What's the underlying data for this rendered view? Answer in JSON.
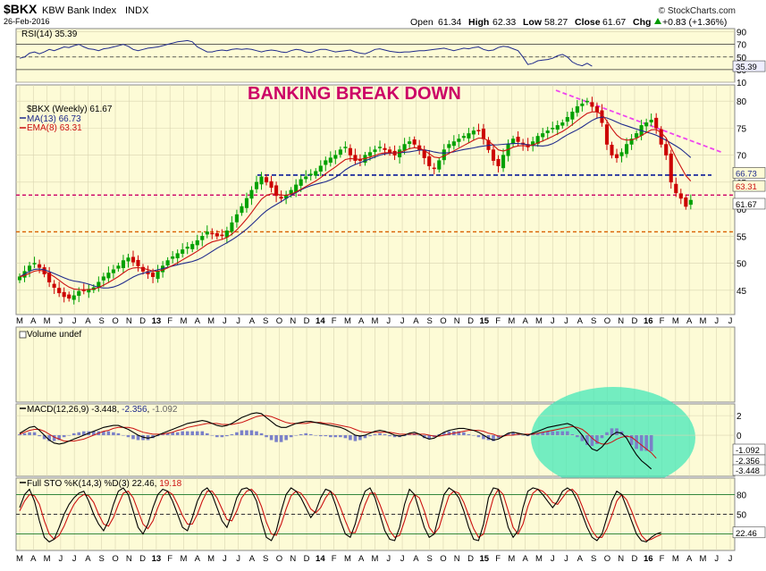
{
  "header": {
    "symbol": "$BKX",
    "name": "KBW Bank Index",
    "exchange": "INDX",
    "date": "26-Feb-2016",
    "ohlc": [
      {
        "label": "Open",
        "value": "61.34"
      },
      {
        "label": "High",
        "value": "62.33"
      },
      {
        "label": "Low",
        "value": "58.27"
      },
      {
        "label": "Close",
        "value": "61.67"
      },
      {
        "label": "Chg",
        "value": "+0.83 (+1.36%)"
      }
    ],
    "watermark": "© StockCharts.com",
    "arrow_color": "#009900"
  },
  "annotation": {
    "text": "BANKING BREAK DOWN",
    "color": "#cc0066"
  },
  "colors": {
    "panel_bg": "#fdfbd6",
    "grid": "#d9d4b0",
    "price_up": "#00a000",
    "price_down": "#cc0000",
    "ma13": "#1f2a8c",
    "ema8": "#cc1111",
    "support_blue": "#0a1a99",
    "level_pink": "#cc0066",
    "level_orange": "#d96000",
    "trend_magenta": "#ee44ee",
    "highlight": "#44e8b8",
    "macd_line": "#000000",
    "macd_signal": "#cc1111",
    "macd_hist": "#7a80c8",
    "sto_k": "#000000",
    "sto_d": "#cc1111",
    "rsi_line": "#1f2a8c"
  },
  "chart_data": [
    {
      "type": "line",
      "panel": "rsi",
      "title": "RSI(14) 35.39",
      "label": "RSI(14)",
      "value_text": "35.39",
      "y_ticks": [
        "10",
        "30",
        "50",
        "70",
        "90"
      ],
      "current_label": "35.39",
      "ylim": [
        10,
        95
      ],
      "guide_levels": [
        30,
        50,
        70
      ],
      "values": [
        48,
        50,
        56,
        58,
        55,
        58,
        62,
        60,
        63,
        66,
        65,
        68,
        70,
        66,
        63,
        62,
        60,
        63,
        64,
        66,
        68,
        70,
        67,
        62,
        60,
        62,
        64,
        65,
        66,
        68,
        70,
        72,
        74,
        75,
        76,
        74,
        66,
        62,
        58,
        58,
        60,
        61,
        60,
        62,
        63,
        62,
        63,
        62,
        60,
        58,
        60,
        61,
        60,
        58,
        57,
        60,
        62,
        61,
        58,
        57,
        60,
        62,
        62,
        60,
        58,
        59,
        60,
        61,
        58,
        56,
        55,
        58,
        62,
        63,
        61,
        59,
        58,
        57,
        58,
        58,
        59,
        60,
        60,
        61,
        62,
        63,
        64,
        62,
        60,
        62,
        64,
        63,
        65,
        66,
        62,
        60,
        61,
        65,
        67,
        66,
        63,
        60,
        50,
        38,
        40,
        44,
        45,
        46,
        48,
        52,
        54,
        50,
        42,
        38,
        36,
        40,
        35.39
      ]
    },
    {
      "type": "candlestick",
      "panel": "price",
      "title": "$BKX (Weekly) 61.67",
      "series_labels": [
        {
          "name": "$BKX (Weekly)",
          "value": "61.67"
        },
        {
          "name": "MA(13)",
          "value": "66.73"
        },
        {
          "name": "EMA(8)",
          "value": "63.31"
        }
      ],
      "y_ticks": [
        "45",
        "50",
        "55",
        "60",
        "65",
        "70",
        "75",
        "80"
      ],
      "price_tags": [
        "66.73",
        "63.31",
        "61.67"
      ],
      "ylim": [
        40.5,
        83
      ],
      "x_labels": [
        "M",
        "A",
        "M",
        "J",
        "J",
        "A",
        "S",
        "O",
        "N",
        "D",
        "13",
        "F",
        "M",
        "A",
        "M",
        "J",
        "J",
        "A",
        "S",
        "O",
        "N",
        "D",
        "14",
        "F",
        "M",
        "A",
        "M",
        "J",
        "J",
        "A",
        "S",
        "O",
        "N",
        "D",
        "15",
        "F",
        "M",
        "A",
        "M",
        "J",
        "J",
        "A",
        "S",
        "O",
        "N",
        "D",
        "16",
        "F",
        "M",
        "A",
        "M",
        "J",
        "J"
      ],
      "close": [
        47.5,
        48.5,
        49.5,
        50.0,
        49.2,
        48.0,
        46.5,
        45.5,
        44.5,
        43.8,
        43.5,
        44.0,
        44.8,
        45.0,
        45.2,
        45.5,
        46.5,
        47.5,
        48.2,
        48.8,
        49.5,
        50.5,
        51.0,
        50.2,
        49.5,
        48.5,
        48.0,
        47.5,
        48.5,
        49.5,
        50.5,
        51.2,
        51.8,
        52.5,
        53.0,
        53.5,
        54.2,
        55.0,
        55.8,
        55.5,
        55.0,
        55.2,
        56.0,
        57.5,
        59.0,
        60.5,
        62.0,
        63.5,
        65.0,
        66.0,
        65.0,
        64.0,
        62.5,
        62.0,
        62.5,
        63.5,
        64.5,
        65.5,
        66.0,
        66.5,
        67.0,
        68.0,
        69.0,
        69.5,
        70.0,
        71.0,
        71.5,
        70.0,
        69.0,
        69.0,
        70.0,
        70.5,
        71.0,
        71.5,
        71.0,
        70.5,
        70.0,
        71.0,
        72.0,
        72.5,
        72.0,
        71.0,
        69.5,
        68.0,
        67.5,
        69.0,
        71.0,
        72.0,
        72.5,
        73.0,
        73.5,
        74.0,
        74.5,
        74.5,
        73.0,
        71.0,
        69.0,
        68.0,
        70.0,
        72.0,
        73.0,
        72.5,
        72.0,
        71.5,
        72.5,
        73.5,
        74.0,
        74.5,
        75.0,
        75.5,
        76.0,
        77.0,
        78.0,
        79.0,
        79.5,
        80.0,
        79.0,
        78.0,
        76.0,
        72.0,
        70.0,
        69.5,
        70.5,
        72.0,
        73.0,
        74.0,
        75.5,
        76.0,
        76.5,
        75.0,
        72.0,
        70.0,
        65.0,
        63.0,
        62.0,
        60.5,
        61.67
      ]
    },
    {
      "type": "bar",
      "panel": "volume",
      "title": "Volume undef",
      "values": []
    },
    {
      "type": "line",
      "panel": "macd",
      "title": "MACD(12,26,9) -3.448, -2.356, -1.092",
      "label": "MACD(12,26,9)",
      "values_text": [
        "-3.448",
        "-2.356",
        "-1.092"
      ],
      "y_ticks": [
        "2",
        "0"
      ],
      "current_labels": [
        "-1.092",
        "-2.356",
        "-3.448"
      ],
      "ylim": [
        -4.2,
        3.2
      ],
      "series": [
        {
          "name": "MACD",
          "values": [
            0.2,
            0.5,
            0.8,
            0.9,
            0.5,
            0.0,
            -0.5,
            -0.8,
            -0.9,
            -0.8,
            -0.6,
            -0.4,
            -0.2,
            0.0,
            0.2,
            0.4,
            0.6,
            0.8,
            0.9,
            1.0,
            1.0,
            0.8,
            0.6,
            0.3,
            0.0,
            -0.2,
            -0.3,
            -0.2,
            0.0,
            0.2,
            0.4,
            0.6,
            0.8,
            1.0,
            1.2,
            1.3,
            1.4,
            1.5,
            1.4,
            1.2,
            1.0,
            0.9,
            1.0,
            1.2,
            1.5,
            1.8,
            2.0,
            2.2,
            2.3,
            2.2,
            1.8,
            1.4,
            1.0,
            0.8,
            0.8,
            1.0,
            1.2,
            1.3,
            1.4,
            1.4,
            1.3,
            1.2,
            1.1,
            1.0,
            0.9,
            0.8,
            0.6,
            0.3,
            0.0,
            -0.1,
            0.0,
            0.2,
            0.4,
            0.5,
            0.4,
            0.2,
            0.0,
            -0.1,
            0.0,
            0.2,
            0.3,
            0.1,
            -0.2,
            -0.4,
            -0.3,
            0.0,
            0.3,
            0.5,
            0.6,
            0.7,
            0.7,
            0.6,
            0.5,
            0.3,
            0.0,
            -0.3,
            -0.5,
            -0.4,
            -0.1,
            0.2,
            0.3,
            0.2,
            0.1,
            0.0,
            0.2,
            0.4,
            0.6,
            0.8,
            0.9,
            1.0,
            1.1,
            1.2,
            1.0,
            0.6,
            0.0,
            -0.8,
            -1.4,
            -1.6,
            -1.2,
            -0.6,
            0.0,
            0.3,
            0.2,
            -0.3,
            -1.2,
            -2.0,
            -2.6,
            -3.0,
            -3.448
          ]
        },
        {
          "name": "Signal",
          "values": [
            0.1,
            0.3,
            0.5,
            0.6,
            0.6,
            0.4,
            0.1,
            -0.2,
            -0.4,
            -0.6,
            -0.6,
            -0.6,
            -0.5,
            -0.4,
            -0.2,
            0.0,
            0.2,
            0.4,
            0.5,
            0.7,
            0.8,
            0.8,
            0.8,
            0.7,
            0.5,
            0.3,
            0.2,
            0.1,
            0.1,
            0.1,
            0.2,
            0.3,
            0.5,
            0.6,
            0.8,
            0.9,
            1.0,
            1.1,
            1.2,
            1.2,
            1.2,
            1.1,
            1.1,
            1.1,
            1.2,
            1.3,
            1.5,
            1.7,
            1.9,
            2.0,
            2.0,
            1.9,
            1.7,
            1.5,
            1.3,
            1.2,
            1.2,
            1.2,
            1.2,
            1.3,
            1.3,
            1.3,
            1.2,
            1.2,
            1.1,
            1.0,
            0.9,
            0.8,
            0.6,
            0.4,
            0.3,
            0.3,
            0.3,
            0.3,
            0.3,
            0.3,
            0.2,
            0.1,
            0.1,
            0.1,
            0.1,
            0.1,
            0.1,
            0.0,
            -0.1,
            -0.1,
            0.0,
            0.1,
            0.2,
            0.3,
            0.4,
            0.5,
            0.5,
            0.5,
            0.4,
            0.2,
            0.1,
            -0.1,
            -0.1,
            0.0,
            0.0,
            0.1,
            0.1,
            0.1,
            0.1,
            0.2,
            0.3,
            0.4,
            0.5,
            0.6,
            0.7,
            0.8,
            0.9,
            0.8,
            0.6,
            0.2,
            -0.3,
            -0.7,
            -0.9,
            -0.9,
            -0.7,
            -0.4,
            -0.2,
            -0.1,
            -0.2,
            -0.6,
            -1.0,
            -1.4,
            -1.8,
            -2.356
          ]
        }
      ]
    },
    {
      "type": "line",
      "panel": "stochastic",
      "title": "Full STO %K(14,3) %D(3) 22.46, 19.18",
      "label": "Full STO %K(14,3) %D(3)",
      "values_text": [
        "22.46",
        "19.18"
      ],
      "y_ticks": [
        "80",
        "50"
      ],
      "current_label": "22.46",
      "ylim": [
        -5,
        105
      ],
      "guide_levels": [
        20,
        50,
        80
      ],
      "series": [
        {
          "name": "%K",
          "values": [
            60,
            80,
            88,
            70,
            40,
            15,
            8,
            12,
            30,
            50,
            65,
            75,
            82,
            85,
            70,
            50,
            35,
            25,
            40,
            65,
            85,
            90,
            80,
            55,
            30,
            20,
            35,
            60,
            80,
            88,
            85,
            70,
            50,
            30,
            25,
            45,
            70,
            85,
            90,
            80,
            60,
            40,
            30,
            50,
            75,
            88,
            90,
            85,
            70,
            40,
            15,
            10,
            25,
            55,
            80,
            90,
            85,
            75,
            60,
            45,
            55,
            75,
            88,
            85,
            65,
            40,
            20,
            15,
            35,
            65,
            85,
            90,
            75,
            50,
            25,
            12,
            10,
            30,
            65,
            88,
            80,
            55,
            30,
            15,
            20,
            50,
            80,
            90,
            85,
            75,
            55,
            30,
            12,
            10,
            35,
            75,
            90,
            88,
            60,
            30,
            15,
            25,
            60,
            85,
            90,
            88,
            80,
            70,
            60,
            70,
            85,
            90,
            85,
            70,
            50,
            30,
            15,
            10,
            20,
            45,
            70,
            85,
            80,
            60,
            40,
            20,
            10,
            8,
            15,
            20,
            22.46
          ]
        },
        {
          "name": "%D",
          "values": [
            55,
            70,
            80,
            78,
            65,
            40,
            20,
            12,
            18,
            32,
            50,
            65,
            75,
            80,
            78,
            68,
            50,
            35,
            32,
            45,
            65,
            82,
            85,
            75,
            55,
            35,
            28,
            40,
            60,
            78,
            85,
            80,
            65,
            48,
            35,
            35,
            50,
            70,
            85,
            85,
            75,
            58,
            42,
            40,
            55,
            75,
            85,
            88,
            80,
            62,
            38,
            20,
            18,
            35,
            58,
            78,
            85,
            82,
            72,
            58,
            52,
            60,
            75,
            85,
            78,
            60,
            40,
            22,
            22,
            42,
            65,
            82,
            82,
            65,
            45,
            25,
            15,
            18,
            40,
            65,
            80,
            75,
            55,
            30,
            20,
            30,
            55,
            78,
            85,
            82,
            68,
            48,
            28,
            15,
            20,
            48,
            75,
            88,
            80,
            55,
            30,
            20,
            35,
            62,
            82,
            88,
            85,
            78,
            68,
            65,
            75,
            85,
            88,
            80,
            62,
            42,
            25,
            15,
            15,
            28,
            48,
            70,
            80,
            72,
            55,
            35,
            18,
            10,
            12,
            16,
            19.18
          ]
        }
      ]
    }
  ]
}
